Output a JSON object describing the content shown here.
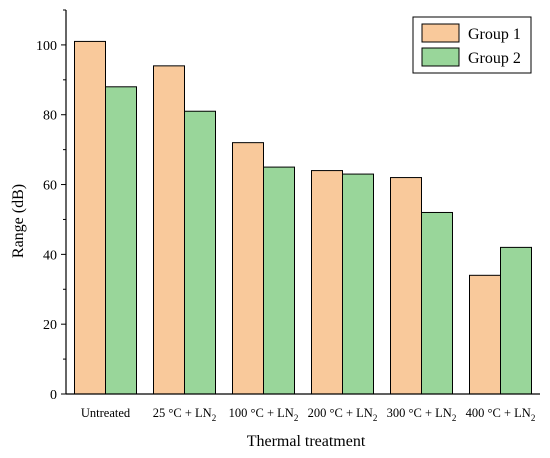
{
  "chart_data": {
    "type": "bar",
    "xlabel": "Thermal treatment",
    "ylabel": "Range (dB)",
    "ylim": [
      0,
      110
    ],
    "yticks": [
      0,
      20,
      40,
      60,
      80,
      100
    ],
    "categories": [
      {
        "text": "Untreated",
        "sub": ""
      },
      {
        "text": "25 °C + LN",
        "sub": "2"
      },
      {
        "text": "100 °C + LN",
        "sub": "2"
      },
      {
        "text": "200 °C + LN",
        "sub": "2"
      },
      {
        "text": "300 °C + LN",
        "sub": "2"
      },
      {
        "text": "400 °C + LN",
        "sub": "2"
      }
    ],
    "series": [
      {
        "name": "Group 1",
        "color": "#f9c99b",
        "values": [
          101,
          94,
          72,
          64,
          62,
          34
        ]
      },
      {
        "name": "Group 2",
        "color": "#99d69a",
        "values": [
          88,
          81,
          65,
          63,
          52,
          42
        ]
      }
    ],
    "legend": "top-right",
    "grid": false
  }
}
